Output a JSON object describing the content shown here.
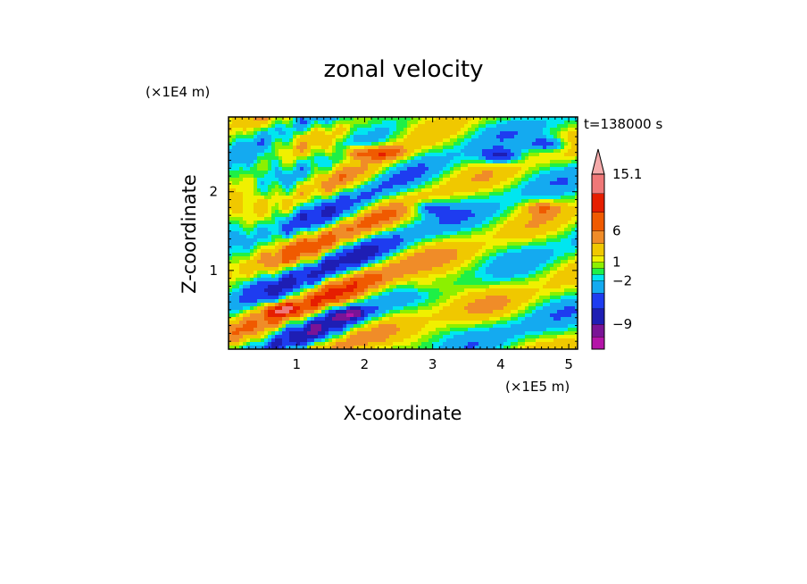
{
  "chart_data": {
    "type": "heatmap",
    "title": "zonal velocity",
    "xlabel": "X-coordinate",
    "ylabel": "Z-coordinate",
    "x_unit": "(×1E5 m)",
    "y_unit": "(×1E4 m)",
    "time_label": "t=138000 s",
    "xlim": [
      0,
      5.13
    ],
    "ylim": [
      0,
      2.95
    ],
    "x_ticks": [
      1,
      2,
      3,
      4,
      5
    ],
    "y_ticks": [
      1,
      2
    ],
    "colorbar": {
      "levels": [
        -13.0,
        -11.0,
        -9.0,
        -6.5,
        -4.0,
        -2.0,
        -1.0,
        0.0,
        1.0,
        2.0,
        4.0,
        6.0,
        9.0,
        12.0,
        15.1
      ],
      "tick_labels": [
        "15.1",
        "6",
        "1",
        "−2",
        "−9"
      ],
      "tick_values": [
        15.1,
        6,
        1,
        -2,
        -9
      ],
      "colors": [
        "#e81ec8",
        "#b414a8",
        "#7a1496",
        "#1e1eb4",
        "#1e3cf0",
        "#14aaf0",
        "#00e6f0",
        "#1ef046",
        "#8cf000",
        "#f0f000",
        "#f0c800",
        "#f08c28",
        "#f05a00",
        "#e61e00",
        "#f07878",
        "#f5aaaa"
      ],
      "extend": "max"
    },
    "features": [
      {
        "x": 4.0,
        "z": 2.45,
        "value": -8
      },
      {
        "x": 2.95,
        "z": 1.8,
        "value": -6
      },
      {
        "x": 4.7,
        "z": 2.6,
        "value": -7
      },
      {
        "x": 1.75,
        "z": 0.45,
        "value": -6
      },
      {
        "x": 0.75,
        "z": 0.5,
        "value": 8
      },
      {
        "x": 1.9,
        "z": 2.5,
        "value": 6
      },
      {
        "x": 2.3,
        "z": 2.5,
        "value": 7
      },
      {
        "x": 4.6,
        "z": 1.8,
        "value": 5
      },
      {
        "x": 2.9,
        "z": 0.8,
        "value": 2
      },
      {
        "x": 3.7,
        "z": 0.1,
        "value": 0
      }
    ]
  }
}
